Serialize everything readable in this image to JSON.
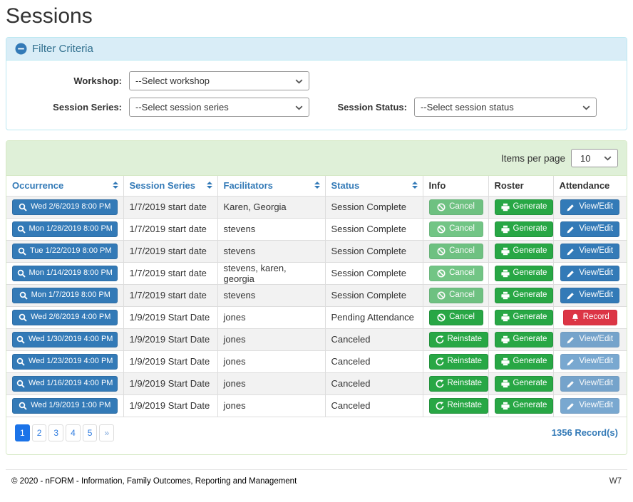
{
  "page_title": "Sessions",
  "colors": {
    "accent_blue": "#337ab7",
    "success_green": "#28a745",
    "danger_red": "#dc3545",
    "panel_blue_bg": "#d9edf7",
    "panel_green_bg": "#dff0d8"
  },
  "filter": {
    "title": "Filter Criteria",
    "collapse_icon": "minus-circle-icon",
    "workshop_label": "Workshop:",
    "workshop_value": "--Select workshop",
    "session_series_label": "Session Series:",
    "session_series_value": "--Select session series",
    "session_status_label": "Session Status:",
    "session_status_value": "--Select session status"
  },
  "table": {
    "items_per_page_label": "Items per page",
    "items_per_page_value": "10",
    "columns": [
      {
        "label": "Occurrence",
        "sortable": true
      },
      {
        "label": "Session Series",
        "sortable": true
      },
      {
        "label": "Facilitators",
        "sortable": true
      },
      {
        "label": "Status",
        "sortable": true
      },
      {
        "label": "Info",
        "sortable": false
      },
      {
        "label": "Roster",
        "sortable": false
      },
      {
        "label": "Attendance",
        "sortable": false
      }
    ],
    "rows": [
      {
        "occurrence": "Wed 2/6/2019 8:00 PM",
        "series": "1/7/2019 start date",
        "facilitators": "Karen, Georgia",
        "status": "Session Complete",
        "info": {
          "label": "Cancel",
          "icon": "ban",
          "style": "success",
          "disabled": true,
          "name": "cancel-button"
        },
        "roster": {
          "label": "Generate",
          "icon": "printer",
          "style": "success",
          "disabled": false,
          "name": "generate-button"
        },
        "attendance": {
          "label": "View/Edit",
          "icon": "pencil",
          "style": "primary",
          "disabled": false,
          "name": "view-edit-button"
        }
      },
      {
        "occurrence": "Mon 1/28/2019 8:00 PM",
        "series": "1/7/2019 start date",
        "facilitators": "stevens",
        "status": "Session Complete",
        "info": {
          "label": "Cancel",
          "icon": "ban",
          "style": "success",
          "disabled": true,
          "name": "cancel-button"
        },
        "roster": {
          "label": "Generate",
          "icon": "printer",
          "style": "success",
          "disabled": false,
          "name": "generate-button"
        },
        "attendance": {
          "label": "View/Edit",
          "icon": "pencil",
          "style": "primary",
          "disabled": false,
          "name": "view-edit-button"
        }
      },
      {
        "occurrence": "Tue 1/22/2019 8:00 PM",
        "series": "1/7/2019 start date",
        "facilitators": "stevens",
        "status": "Session Complete",
        "info": {
          "label": "Cancel",
          "icon": "ban",
          "style": "success",
          "disabled": true,
          "name": "cancel-button"
        },
        "roster": {
          "label": "Generate",
          "icon": "printer",
          "style": "success",
          "disabled": false,
          "name": "generate-button"
        },
        "attendance": {
          "label": "View/Edit",
          "icon": "pencil",
          "style": "primary",
          "disabled": false,
          "name": "view-edit-button"
        }
      },
      {
        "occurrence": "Mon 1/14/2019 8:00 PM",
        "series": "1/7/2019 start date",
        "facilitators": "stevens, karen, georgia",
        "status": "Session Complete",
        "info": {
          "label": "Cancel",
          "icon": "ban",
          "style": "success",
          "disabled": true,
          "name": "cancel-button"
        },
        "roster": {
          "label": "Generate",
          "icon": "printer",
          "style": "success",
          "disabled": false,
          "name": "generate-button"
        },
        "attendance": {
          "label": "View/Edit",
          "icon": "pencil",
          "style": "primary",
          "disabled": false,
          "name": "view-edit-button"
        }
      },
      {
        "occurrence": "Mon 1/7/2019 8:00 PM",
        "series": "1/7/2019 start date",
        "facilitators": "stevens",
        "status": "Session Complete",
        "info": {
          "label": "Cancel",
          "icon": "ban",
          "style": "success",
          "disabled": true,
          "name": "cancel-button"
        },
        "roster": {
          "label": "Generate",
          "icon": "printer",
          "style": "success",
          "disabled": false,
          "name": "generate-button"
        },
        "attendance": {
          "label": "View/Edit",
          "icon": "pencil",
          "style": "primary",
          "disabled": false,
          "name": "view-edit-button"
        }
      },
      {
        "occurrence": "Wed 2/6/2019 4:00 PM",
        "series": "1/9/2019 Start Date",
        "facilitators": "jones",
        "status": "Pending Attendance",
        "info": {
          "label": "Cancel",
          "icon": "ban",
          "style": "success",
          "disabled": false,
          "name": "cancel-button"
        },
        "roster": {
          "label": "Generate",
          "icon": "printer",
          "style": "success",
          "disabled": false,
          "name": "generate-button"
        },
        "attendance": {
          "label": "Record",
          "icon": "bell",
          "style": "danger",
          "disabled": false,
          "name": "record-button"
        }
      },
      {
        "occurrence": "Wed 1/30/2019 4:00 PM",
        "series": "1/9/2019 Start Date",
        "facilitators": "jones",
        "status": "Canceled",
        "info": {
          "label": "Reinstate",
          "icon": "undo",
          "style": "success",
          "disabled": false,
          "name": "reinstate-button"
        },
        "roster": {
          "label": "Generate",
          "icon": "printer",
          "style": "success",
          "disabled": false,
          "name": "generate-button"
        },
        "attendance": {
          "label": "View/Edit",
          "icon": "pencil",
          "style": "primary",
          "disabled": true,
          "name": "view-edit-button"
        }
      },
      {
        "occurrence": "Wed 1/23/2019 4:00 PM",
        "series": "1/9/2019 Start Date",
        "facilitators": "jones",
        "status": "Canceled",
        "info": {
          "label": "Reinstate",
          "icon": "undo",
          "style": "success",
          "disabled": false,
          "name": "reinstate-button"
        },
        "roster": {
          "label": "Generate",
          "icon": "printer",
          "style": "success",
          "disabled": false,
          "name": "generate-button"
        },
        "attendance": {
          "label": "View/Edit",
          "icon": "pencil",
          "style": "primary",
          "disabled": true,
          "name": "view-edit-button"
        }
      },
      {
        "occurrence": "Wed 1/16/2019 4:00 PM",
        "series": "1/9/2019 Start Date",
        "facilitators": "jones",
        "status": "Canceled",
        "info": {
          "label": "Reinstate",
          "icon": "undo",
          "style": "success",
          "disabled": false,
          "name": "reinstate-button"
        },
        "roster": {
          "label": "Generate",
          "icon": "printer",
          "style": "success",
          "disabled": false,
          "name": "generate-button"
        },
        "attendance": {
          "label": "View/Edit",
          "icon": "pencil",
          "style": "primary",
          "disabled": true,
          "name": "view-edit-button"
        }
      },
      {
        "occurrence": "Wed 1/9/2019 1:00 PM",
        "series": "1/9/2019 Start Date",
        "facilitators": "jones",
        "status": "Canceled",
        "info": {
          "label": "Reinstate",
          "icon": "undo",
          "style": "success",
          "disabled": false,
          "name": "reinstate-button"
        },
        "roster": {
          "label": "Generate",
          "icon": "printer",
          "style": "success",
          "disabled": false,
          "name": "generate-button"
        },
        "attendance": {
          "label": "View/Edit",
          "icon": "pencil",
          "style": "primary",
          "disabled": true,
          "name": "view-edit-button"
        }
      }
    ],
    "pagination": [
      {
        "label": "1",
        "active": true
      },
      {
        "label": "2",
        "active": false
      },
      {
        "label": "3",
        "active": false
      },
      {
        "label": "4",
        "active": false
      },
      {
        "label": "5",
        "active": false
      },
      {
        "label": "»",
        "active": false,
        "next": true
      }
    ],
    "record_count": "1356 Record(s)"
  },
  "footer": {
    "copyright": "© 2020 - nFORM - Information, Family Outcomes, Reporting and Management",
    "environment": "W7"
  }
}
